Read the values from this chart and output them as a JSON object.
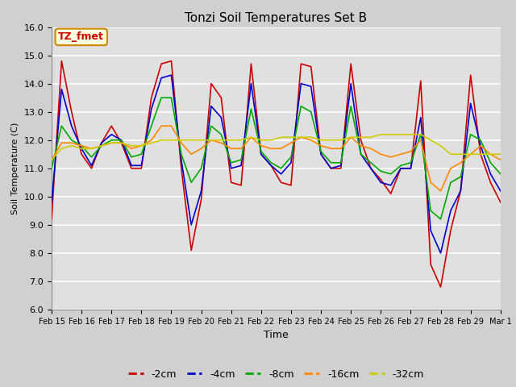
{
  "title": "Tonzi Soil Temperatures Set B",
  "xlabel": "Time",
  "ylabel": "Soil Temperature (C)",
  "annotation": "TZ_fmet",
  "ylim": [
    6.0,
    16.0
  ],
  "yticks": [
    6.0,
    7.0,
    8.0,
    9.0,
    10.0,
    11.0,
    12.0,
    13.0,
    14.0,
    15.0,
    16.0
  ],
  "xtick_labels": [
    "Feb 15",
    "Feb 16",
    "Feb 17",
    "Feb 18",
    "Feb 19",
    "Feb 20",
    "Feb 21",
    "Feb 22",
    "Feb 23",
    "Feb 24",
    "Feb 25",
    "Feb 26",
    "Feb 27",
    "Feb 28",
    "Feb 29",
    "Mar 1"
  ],
  "colors": {
    "-2cm": "#cc0000",
    "-4cm": "#0000cc",
    "-8cm": "#00aa00",
    "-16cm": "#ff8800",
    "-32cm": "#cccc00"
  },
  "legend_labels": [
    "-2cm",
    "-4cm",
    "-8cm",
    "-16cm",
    "-32cm"
  ],
  "fig_facecolor": "#d0d0d0",
  "ax_facecolor": "#e0e0e0",
  "t_2cm": [
    9.2,
    14.8,
    13.0,
    11.5,
    11.0,
    11.9,
    12.5,
    11.9,
    11.0,
    11.0,
    13.5,
    14.7,
    14.8,
    11.0,
    8.1,
    9.9,
    14.0,
    13.5,
    10.5,
    10.4,
    14.7,
    11.5,
    11.1,
    10.5,
    10.4,
    14.7,
    14.6,
    11.5,
    11.0,
    11.0,
    14.7,
    12.0,
    11.0,
    10.6,
    10.1,
    11.0,
    11.0,
    14.1,
    7.6,
    6.8,
    8.8,
    10.2,
    14.3,
    11.5,
    10.5,
    9.8
  ],
  "t_4cm": [
    9.8,
    13.8,
    12.5,
    11.7,
    11.1,
    11.9,
    12.2,
    12.0,
    11.1,
    11.1,
    13.1,
    14.2,
    14.3,
    11.3,
    9.0,
    10.2,
    13.2,
    12.8,
    11.0,
    11.1,
    14.0,
    11.5,
    11.1,
    10.8,
    11.2,
    14.0,
    13.9,
    11.5,
    11.0,
    11.1,
    14.0,
    11.5,
    11.0,
    10.5,
    10.4,
    11.0,
    11.0,
    12.8,
    8.8,
    8.0,
    9.5,
    10.2,
    13.3,
    11.8,
    10.8,
    10.2
  ],
  "t_8cm": [
    11.0,
    12.5,
    12.0,
    11.8,
    11.4,
    11.8,
    12.0,
    12.0,
    11.4,
    11.5,
    12.5,
    13.5,
    13.5,
    11.5,
    10.5,
    11.0,
    12.5,
    12.2,
    11.2,
    11.3,
    13.1,
    11.6,
    11.2,
    11.0,
    11.4,
    13.2,
    13.0,
    11.6,
    11.2,
    11.2,
    13.2,
    11.5,
    11.2,
    10.9,
    10.8,
    11.1,
    11.2,
    12.2,
    9.5,
    9.2,
    10.5,
    10.7,
    12.2,
    12.0,
    11.2,
    10.8
  ],
  "t_16cm": [
    11.3,
    11.9,
    11.9,
    11.8,
    11.7,
    11.8,
    11.9,
    11.9,
    11.7,
    11.8,
    12.0,
    12.5,
    12.5,
    11.9,
    11.5,
    11.7,
    12.0,
    11.9,
    11.7,
    11.7,
    12.1,
    11.8,
    11.7,
    11.7,
    11.9,
    12.1,
    12.0,
    11.8,
    11.7,
    11.7,
    12.1,
    11.8,
    11.7,
    11.5,
    11.4,
    11.5,
    11.6,
    12.0,
    10.5,
    10.2,
    11.0,
    11.2,
    11.5,
    11.8,
    11.5,
    11.3
  ],
  "t_32cm": [
    11.3,
    11.7,
    11.8,
    11.7,
    11.7,
    11.8,
    11.9,
    11.9,
    11.8,
    11.8,
    11.9,
    12.0,
    12.0,
    12.0,
    12.0,
    12.0,
    12.0,
    12.0,
    12.0,
    12.0,
    12.1,
    12.0,
    12.0,
    12.1,
    12.1,
    12.1,
    12.1,
    12.0,
    12.0,
    12.0,
    12.1,
    12.1,
    12.1,
    12.2,
    12.2,
    12.2,
    12.2,
    12.2,
    12.0,
    11.8,
    11.5,
    11.5,
    11.5,
    11.5,
    11.5,
    11.5
  ]
}
